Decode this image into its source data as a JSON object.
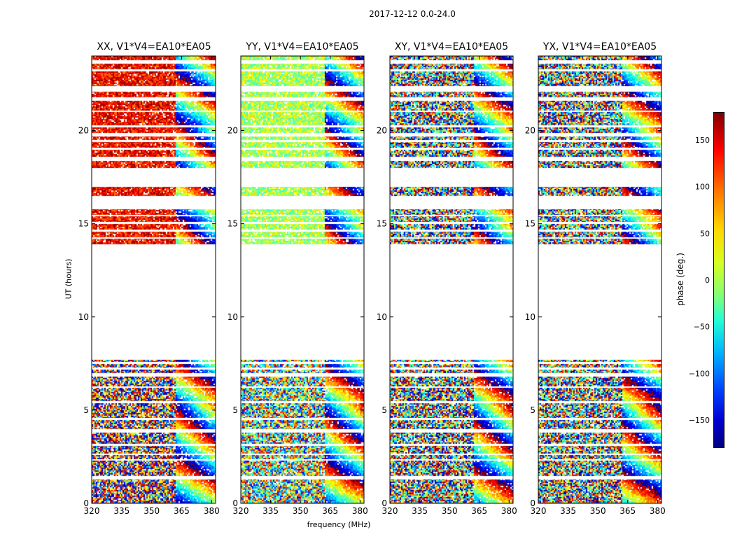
{
  "figure_title": "2017-12-12 0.0-24.0",
  "chart_data": {
    "type": "heatmap",
    "title": "2017-12-12 0.0-24.0",
    "xlabel": "frequency (MHz)",
    "ylabel": "UT (hours)",
    "xlim": [
      320,
      382
    ],
    "ylim": [
      0,
      24
    ],
    "x_ticks": [
      320,
      335,
      350,
      365,
      380
    ],
    "y_ticks": [
      0,
      5,
      10,
      15,
      20
    ],
    "colorbar": {
      "label": "phase (deg.)",
      "range": [
        -180,
        180
      ],
      "ticks": [
        150,
        100,
        50,
        0,
        -50,
        -100,
        -150
      ],
      "tick_labels": [
        "150",
        "100",
        "50",
        "0",
        "−50",
        "−100",
        "−150"
      ]
    },
    "panels": [
      {
        "id": "xx",
        "title": "XX, V1*V4=EA10*EA05",
        "base_phase": 135,
        "low_band_phase": 150
      },
      {
        "id": "yy",
        "title": "YY, V1*V4=EA10*EA05",
        "base_phase": 15,
        "low_band_phase": 5
      },
      {
        "id": "xy",
        "title": "XY, V1*V4=EA10*EA05",
        "base_phase": null,
        "low_band_phase": null
      },
      {
        "id": "yx",
        "title": "YX, V1*V4=EA10*EA05",
        "base_phase": null,
        "low_band_phase": null
      }
    ],
    "data_segments_ut_hours": [
      [
        0.0,
        1.3
      ],
      [
        1.5,
        2.3
      ],
      [
        2.4,
        2.6
      ],
      [
        2.7,
        3.1
      ],
      [
        3.2,
        3.8
      ],
      [
        4.0,
        4.5
      ],
      [
        4.6,
        5.4
      ],
      [
        5.5,
        6.2
      ],
      [
        6.3,
        6.8
      ],
      [
        7.0,
        7.2
      ],
      [
        7.3,
        7.5
      ],
      [
        7.6,
        7.7
      ],
      [
        13.9,
        14.2
      ],
      [
        14.3,
        14.6
      ],
      [
        14.7,
        15.0
      ],
      [
        15.1,
        15.4
      ],
      [
        15.5,
        15.8
      ],
      [
        16.5,
        17.0
      ],
      [
        18.0,
        18.4
      ],
      [
        18.6,
        19.0
      ],
      [
        19.1,
        19.4
      ],
      [
        19.5,
        19.7
      ],
      [
        19.9,
        20.2
      ],
      [
        20.3,
        21.0
      ],
      [
        21.1,
        21.6
      ],
      [
        21.8,
        22.1
      ],
      [
        22.4,
        23.2
      ],
      [
        23.3,
        23.6
      ],
      [
        23.8,
        24.0
      ]
    ],
    "fringe_onset_mhz": 362
  }
}
